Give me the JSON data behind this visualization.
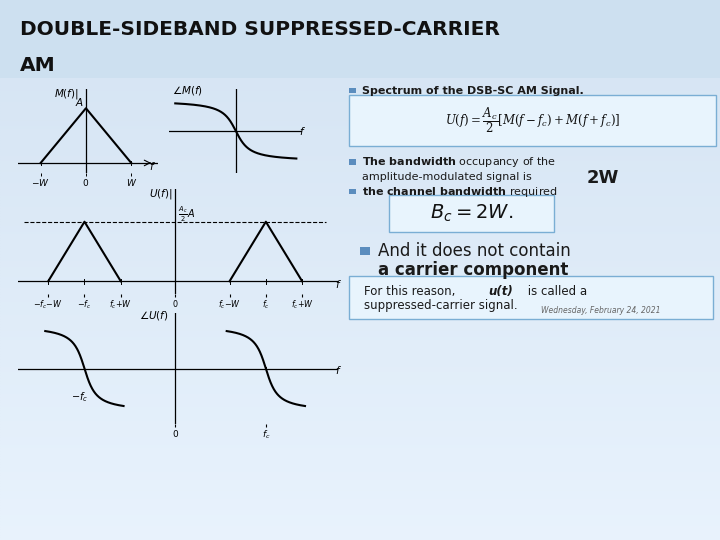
{
  "title_line1": "DOUBLE-SIDEBAND SUPPRESSED-CARRIER",
  "title_line2": "AM",
  "spectrum_bullet": "Spectrum of the DSB-SC AM Signal.",
  "bandwidth_bold": "The bandwidth",
  "bandwidth_rest": " occupancy of the",
  "bandwidth_line2a": "amplitude-modulated signal is ",
  "bandwidth_2W": "2W",
  "channel_bold": "the channel bandwidth",
  "channel_rest": " required",
  "bc_label": "$\\mathit{B_c}$=2W.",
  "and_text1": " And it does not contain",
  "and_text2": "a carrier component",
  "for_text": "For this reason, ",
  "ut_text": "u(t)",
  "called_text": " is called a",
  "suppressed_text": "suppressed-carrier signal.",
  "date_text": "Wednesday, February 24, 2021",
  "bg_top": "#e8f4fc",
  "bg_bottom": "#c8dff0",
  "bullet_color": "#5b8dbe",
  "box_edge": "#7aaed4",
  "box_face": "#e8f4fd"
}
